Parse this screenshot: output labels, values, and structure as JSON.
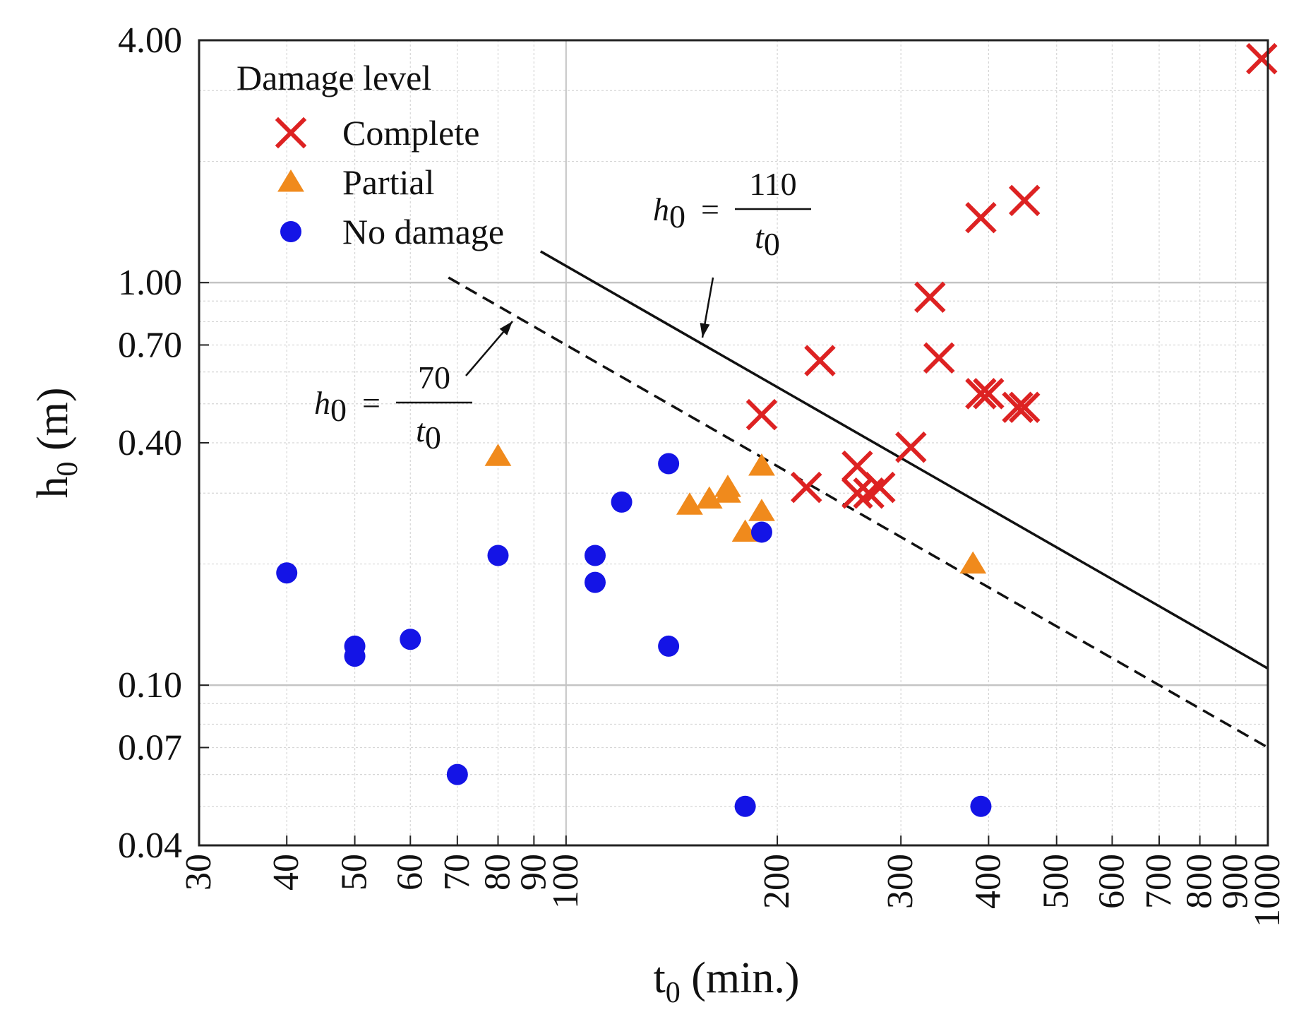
{
  "chart_data": {
    "type": "scatter",
    "xscale": "log",
    "yscale": "log",
    "xlim": [
      30,
      1000
    ],
    "ylim": [
      0.04,
      4.0
    ],
    "xlabel_main": "t",
    "xlabel_sub": "0",
    "xlabel_rest": " (min.)",
    "ylabel_main": "h",
    "ylabel_sub": "0",
    "ylabel_rest": " (m)",
    "x_ticks": [
      {
        "value": 30,
        "label": "30"
      },
      {
        "value": 40,
        "label": "40"
      },
      {
        "value": 50,
        "label": "50"
      },
      {
        "value": 60,
        "label": "60"
      },
      {
        "value": 70,
        "label": "70"
      },
      {
        "value": 80,
        "label": "80"
      },
      {
        "value": 90,
        "label": "90"
      },
      {
        "value": 100,
        "label": "100"
      },
      {
        "value": 200,
        "label": "200"
      },
      {
        "value": 300,
        "label": "300"
      },
      {
        "value": 400,
        "label": "400"
      },
      {
        "value": 500,
        "label": "500"
      },
      {
        "value": 600,
        "label": "600"
      },
      {
        "value": 700,
        "label": "700"
      },
      {
        "value": 800,
        "label": "800"
      },
      {
        "value": 900,
        "label": "900"
      },
      {
        "value": 1000,
        "label": "1000"
      }
    ],
    "y_ticks": [
      {
        "value": 0.04,
        "label": "0.04"
      },
      {
        "value": 0.07,
        "label": "0.07"
      },
      {
        "value": 0.1,
        "label": "0.10"
      },
      {
        "value": 0.4,
        "label": "0.40"
      },
      {
        "value": 0.7,
        "label": "0.70"
      },
      {
        "value": 1.0,
        "label": "1.00"
      },
      {
        "value": 4.0,
        "label": "4.00"
      }
    ],
    "legend_title": "Damage level",
    "series": [
      {
        "name": "Complete",
        "marker": "x",
        "color": "#dd2222",
        "points": [
          [
            190,
            0.47
          ],
          [
            220,
            0.31
          ],
          [
            230,
            0.64
          ],
          [
            260,
            0.3
          ],
          [
            260,
            0.35
          ],
          [
            270,
            0.3
          ],
          [
            280,
            0.31
          ],
          [
            310,
            0.39
          ],
          [
            330,
            0.92
          ],
          [
            340,
            0.65
          ],
          [
            390,
            1.45
          ],
          [
            390,
            0.53
          ],
          [
            400,
            0.53
          ],
          [
            440,
            0.49
          ],
          [
            450,
            0.49
          ],
          [
            450,
            1.6
          ],
          [
            980,
            3.6
          ]
        ]
      },
      {
        "name": "Partial",
        "marker": "triangle",
        "color": "#f08a1c",
        "points": [
          [
            80,
            0.37
          ],
          [
            150,
            0.28
          ],
          [
            160,
            0.29
          ],
          [
            170,
            0.3
          ],
          [
            170,
            0.31
          ],
          [
            180,
            0.24
          ],
          [
            190,
            0.35
          ],
          [
            190,
            0.27
          ],
          [
            380,
            0.2
          ]
        ]
      },
      {
        "name": "No damage",
        "marker": "circle",
        "color": "#1414e6",
        "points": [
          [
            40,
            0.19
          ],
          [
            50,
            0.125
          ],
          [
            50,
            0.118
          ],
          [
            60,
            0.13
          ],
          [
            70,
            0.06
          ],
          [
            80,
            0.21
          ],
          [
            110,
            0.21
          ],
          [
            110,
            0.18
          ],
          [
            120,
            0.285
          ],
          [
            140,
            0.355
          ],
          [
            140,
            0.125
          ],
          [
            180,
            0.05
          ],
          [
            190,
            0.24
          ],
          [
            390,
            0.05
          ]
        ]
      }
    ],
    "lines": [
      {
        "name": "h0 = 110 / t0",
        "coefficient": 110,
        "numerator": "110",
        "style": "solid",
        "x_range": [
          92,
          1000
        ]
      },
      {
        "name": "h0 = 70 / t0",
        "coefficient": 70,
        "numerator": "70",
        "style": "dashed",
        "x_range": [
          68,
          1000
        ]
      }
    ],
    "equation_lhs_main": "h",
    "equation_lhs_sub": "0",
    "equation_eq": "=",
    "equation_den_main": "t",
    "equation_den_sub": "0"
  }
}
